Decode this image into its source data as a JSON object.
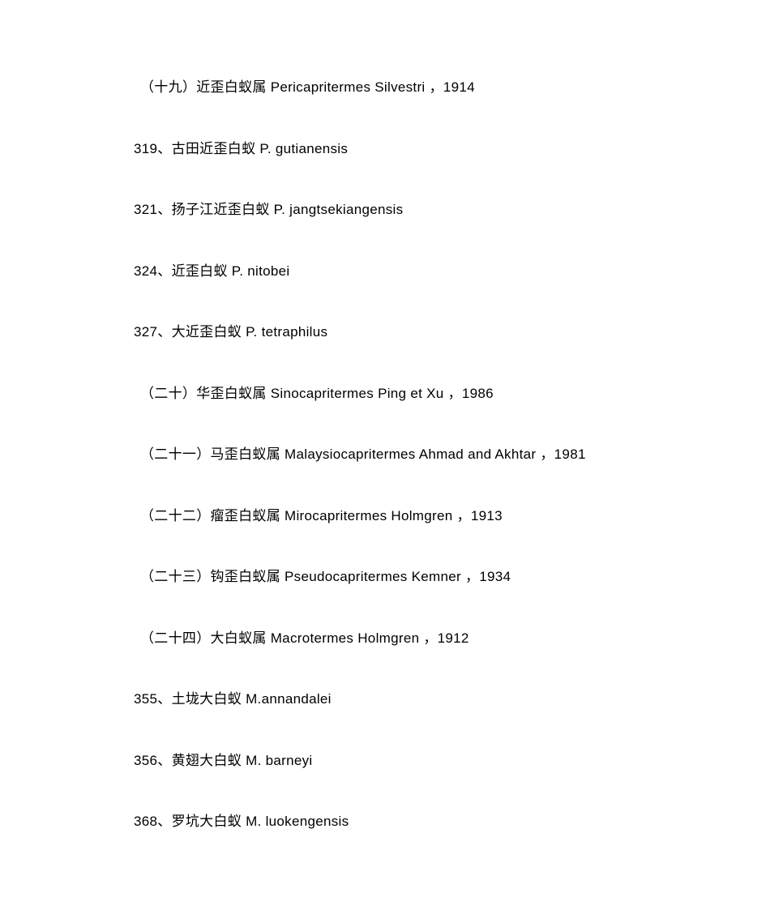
{
  "entries": [
    {
      "type": "genus",
      "text": "（十九）近歪白蚁属  Pericapritermes Silvestri   ，1914"
    },
    {
      "type": "species",
      "text": "319、古田近歪白蚁  P. gutianensis"
    },
    {
      "type": "species",
      "text": "321、扬子江近歪白蚁  P. jangtsekiangensis"
    },
    {
      "type": "species",
      "text": "324、近歪白蚁  P. nitobei"
    },
    {
      "type": "species",
      "text": "327、大近歪白蚁  P. tetraphilus"
    },
    {
      "type": "genus",
      "text": "（二十）华歪白蚁属    Sinocapritermes Ping et Xu  ，1986"
    },
    {
      "type": "genus",
      "text": "（二十一）马歪白蚁属  Malaysiocapritermes Ahmad and Akhtar   ，1981"
    },
    {
      "type": "genus",
      "text": "（二十二）瘤歪白蚁属  Mirocapritermes Holmgren  ，1913"
    },
    {
      "type": "genus",
      "text": "（二十三）钩歪白蚁属  Pseudocapritermes Kemner  ，1934"
    },
    {
      "type": "genus",
      "text": "（二十四）大白蚁属  Macrotermes Holmgren  ，1912"
    },
    {
      "type": "species",
      "text": "355、土垅大白蚁  M.annandalei"
    },
    {
      "type": "species",
      "text": "356、黄翅大白蚁  M. barneyi"
    },
    {
      "type": "species",
      "text": "368、罗坑大白蚁  M. luokengensis"
    }
  ]
}
